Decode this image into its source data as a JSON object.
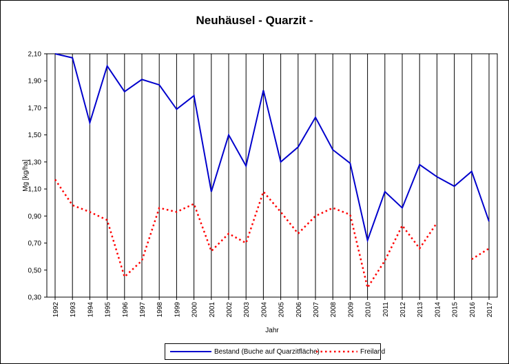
{
  "chart_data": {
    "type": "line",
    "title": "Neuhäusel - Quarzit -",
    "xlabel": "Jahr",
    "ylabel": "Mg [kg/ha]",
    "ylim": [
      0.3,
      2.1
    ],
    "yticks": [
      "0,30",
      "0,50",
      "0,70",
      "0,90",
      "1,10",
      "1,30",
      "1,50",
      "1,70",
      "1,90",
      "2,10"
    ],
    "categories": [
      "1992",
      "1993",
      "1994",
      "1995",
      "1996",
      "1997",
      "1998",
      "1999",
      "2000",
      "2001",
      "2002",
      "2003",
      "2004",
      "2005",
      "2006",
      "2007",
      "2008",
      "2009",
      "2010",
      "2011",
      "2012",
      "2013",
      "2014",
      "2015",
      "2016",
      "2017"
    ],
    "grid": "vertical",
    "legend_position": "bottom",
    "series": [
      {
        "name": "Bestand (Buche auf Quarzitfläche)",
        "color": "#0000cc",
        "style": "solid",
        "values": [
          2.1,
          2.07,
          1.59,
          2.01,
          1.82,
          1.91,
          1.87,
          1.69,
          1.79,
          1.08,
          1.5,
          1.27,
          1.83,
          1.3,
          1.41,
          1.63,
          1.39,
          1.29,
          0.72,
          1.08,
          0.96,
          1.28,
          1.19,
          1.12,
          1.23,
          0.86
        ]
      },
      {
        "name": "Freiland",
        "color": "#ff0000",
        "style": "dotted",
        "values": [
          1.17,
          0.98,
          0.93,
          0.87,
          0.45,
          0.57,
          0.96,
          0.93,
          0.99,
          0.64,
          0.77,
          0.7,
          1.08,
          0.93,
          0.77,
          0.9,
          0.96,
          0.91,
          0.37,
          0.57,
          0.83,
          0.66,
          0.85,
          null,
          0.58,
          0.66
        ]
      }
    ]
  }
}
